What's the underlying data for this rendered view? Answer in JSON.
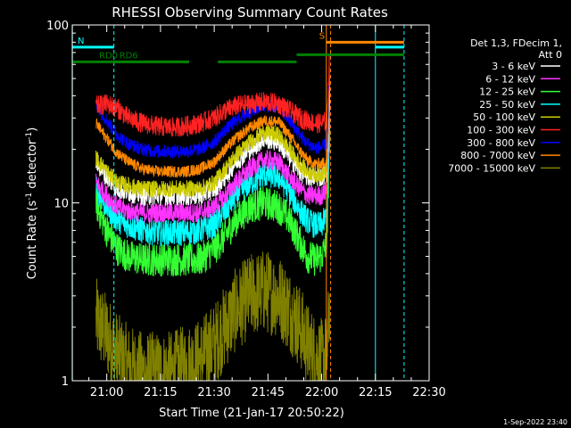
{
  "chart_data": {
    "type": "line",
    "title": "RHESSI Observing Summary Count Rates",
    "xlabel": "Start Time (21-Jan-17 20:50:22)",
    "ylabel_main": "Count Rate (s",
    "ylabel_sup1": "-1",
    "ylabel_mid": " detector",
    "ylabel_sup2": "-1",
    "ylabel_end": ")",
    "x_range_minutes": [
      50.37,
      150
    ],
    "y_range": [
      1,
      100
    ],
    "y_scale": "log",
    "x_ticks": [
      {
        "minute": 60,
        "label": "21:00"
      },
      {
        "minute": 75,
        "label": "21:15"
      },
      {
        "minute": 90,
        "label": "21:30"
      },
      {
        "minute": 105,
        "label": "21:45"
      },
      {
        "minute": 120,
        "label": "22:00"
      },
      {
        "minute": 135,
        "label": "22:15"
      },
      {
        "minute": 150,
        "label": "22:30"
      }
    ],
    "y_ticks": [
      {
        "value": 1,
        "label": "1"
      },
      {
        "value": 10,
        "label": "10"
      },
      {
        "value": 100,
        "label": "100"
      }
    ],
    "legend_header": [
      "Det 1,3, FDecim 1,",
      "Att 0"
    ],
    "legend_position": "right",
    "x": [
      57,
      60,
      63,
      66,
      70,
      74,
      78,
      82,
      86,
      90,
      93,
      96,
      100,
      104,
      108,
      111,
      114,
      116,
      118,
      120,
      121.5,
      122.3
    ],
    "series": [
      {
        "name": "3 - 6 keV",
        "color": "#ffffff",
        "noise": 0.06,
        "values": [
          17,
          14,
          12,
          11.5,
          11,
          11,
          11,
          11,
          11,
          12,
          14,
          17,
          20,
          23,
          22,
          18,
          15,
          14,
          14,
          14,
          15,
          50
        ]
      },
      {
        "name": "6 - 12 keV",
        "color": "#ff33ff",
        "noise": 0.06,
        "values": [
          13,
          11,
          9.5,
          9,
          8.8,
          8.8,
          8.8,
          8.8,
          8.8,
          9.5,
          11,
          13,
          15.5,
          17.5,
          17,
          14,
          12,
          11,
          11,
          11,
          12,
          40
        ]
      },
      {
        "name": "12 - 25 keV",
        "color": "#33ff33",
        "noise": 0.1,
        "values": [
          10,
          7,
          5.5,
          5,
          4.8,
          4.8,
          4.8,
          4.8,
          4.8,
          5.5,
          6.5,
          8,
          9.5,
          10,
          9.5,
          8,
          6,
          5,
          4.8,
          5,
          6,
          30
        ]
      },
      {
        "name": "25 - 50 keV",
        "color": "#00ffff",
        "noise": 0.08,
        "values": [
          12,
          9.5,
          8,
          7.5,
          7,
          6.8,
          6.8,
          6.8,
          7,
          7.5,
          9,
          11,
          13,
          14.5,
          14,
          11.5,
          9,
          8,
          7.5,
          7.5,
          8.5,
          30
        ]
      },
      {
        "name": "50 - 100 keV",
        "color": "#cccc00",
        "noise": 0.05,
        "values": [
          18,
          15,
          13,
          12.5,
          12,
          12,
          12,
          12,
          12,
          13,
          15.5,
          18.5,
          22,
          25,
          24,
          20,
          16.5,
          15,
          14.5,
          14.5,
          15.5,
          55
        ]
      },
      {
        "name": "100 - 300 keV",
        "color": "#ff2222",
        "noise": 0.06,
        "values": [
          35,
          36,
          34,
          30,
          28,
          27,
          26.5,
          27,
          28,
          30,
          33,
          35,
          36,
          37,
          36,
          33,
          30,
          29,
          28,
          28,
          29,
          80
        ]
      },
      {
        "name": "300 - 800 keV",
        "color": "#0000ff",
        "noise": 0.04,
        "values": [
          36,
          29,
          24,
          21.5,
          20,
          19.5,
          19.5,
          19.5,
          20,
          22,
          25.5,
          29,
          32.5,
          35.5,
          34.5,
          29,
          24,
          21.5,
          20.5,
          20.5,
          21.5,
          70
        ]
      },
      {
        "name": "800 - 7000 keV",
        "color": "#ff8800",
        "noise": 0.035,
        "values": [
          28,
          23,
          19,
          17,
          15.5,
          15,
          15,
          15,
          15.5,
          17,
          20,
          23,
          26.5,
          29,
          28.5,
          24,
          19.5,
          17.5,
          16.5,
          16.5,
          17.5,
          60
        ]
      },
      {
        "name": "7000 - 15000 keV",
        "color": "#808000",
        "noise": 0.25,
        "values": [
          2.2,
          1.8,
          1.4,
          1.2,
          1.1,
          1.1,
          1.1,
          1.2,
          1.3,
          1.6,
          2.0,
          2.5,
          3.0,
          3.2,
          3.0,
          2.5,
          2.0,
          1.6,
          1.4,
          1.3,
          1.4,
          3
        ]
      }
    ],
    "annotations": [
      {
        "label": "N",
        "color": "#00ffff",
        "start_minute": 50.37,
        "end_minute": 62,
        "level": 75
      },
      {
        "label": "RD0",
        "color": "#008000",
        "start_minute": 50.37,
        "end_minute": 83,
        "level": 62
      },
      {
        "label": "RD6",
        "color": "#008000",
        "start_minute": 62,
        "end_minute": 83,
        "level": 62
      },
      {
        "label": "",
        "color": "#008000",
        "start_minute": 91,
        "end_minute": 113,
        "level": 62
      },
      {
        "label": "",
        "color": "#008000",
        "start_minute": 113,
        "end_minute": 143,
        "level": 68
      },
      {
        "label": "S",
        "color": "#ff8800",
        "start_minute": 121.3,
        "end_minute": 143,
        "level": 80
      },
      {
        "label": "",
        "color": "#00ffff",
        "start_minute": 135,
        "end_minute": 143,
        "level": 75
      }
    ],
    "vertical_lines": [
      {
        "minute": 50.4,
        "color": "#00ffff",
        "dashed": false
      },
      {
        "minute": 62,
        "color": "#00ffff",
        "dashed": true
      },
      {
        "minute": 121.3,
        "color": "#ff8800",
        "dashed": false
      },
      {
        "minute": 122.5,
        "color": "#ff8800",
        "dashed": true
      },
      {
        "minute": 135,
        "color": "#00ffff",
        "dashed": false
      },
      {
        "minute": 143,
        "color": "#00ffff",
        "dashed": true
      }
    ],
    "timestamp": "1-Sep-2022 23:40"
  }
}
